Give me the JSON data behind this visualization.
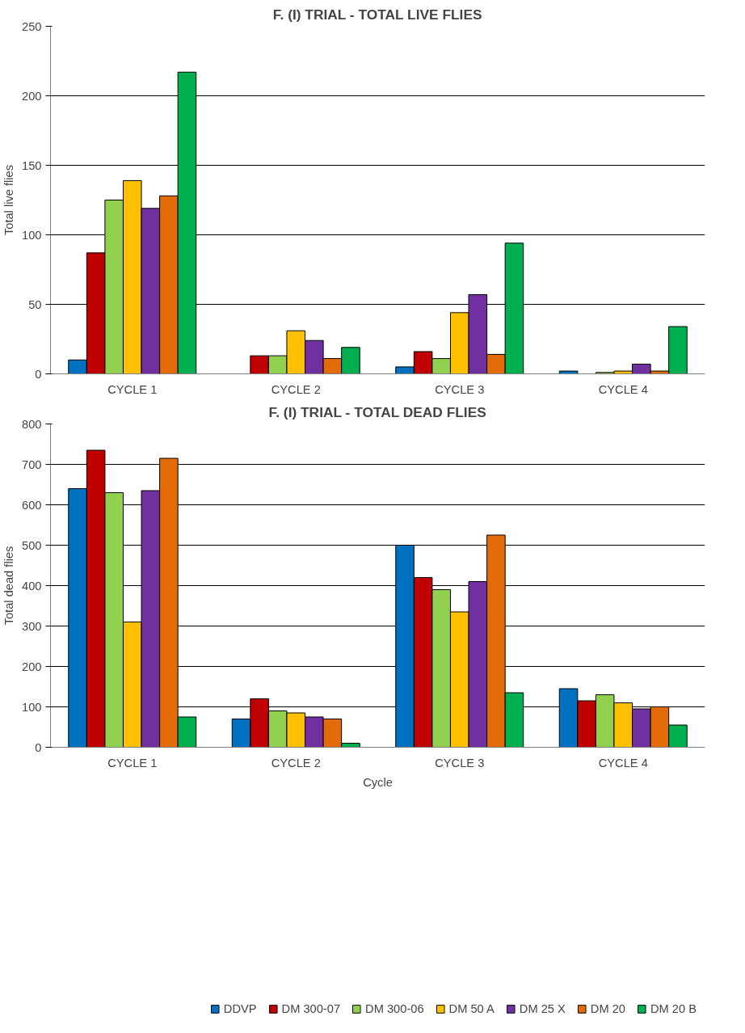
{
  "chart_data": [
    {
      "type": "bar",
      "title": "F. (I) TRIAL - TOTAL LIVE FLIES",
      "ylabel": "Total live flies",
      "categories": [
        "CYCLE 1",
        "CYCLE 2",
        "CYCLE 3",
        "CYCLE 4"
      ],
      "ylim": [
        0,
        250
      ],
      "yticks": [
        0,
        50,
        100,
        150,
        200,
        250
      ],
      "grid": "y",
      "series": [
        {
          "color": "#0070c0",
          "values": [
            10,
            null,
            5,
            2
          ]
        },
        {
          "color": "#c00000",
          "values": [
            87,
            13,
            16,
            null
          ]
        },
        {
          "color": "#92d050",
          "values": [
            125,
            13,
            11,
            1
          ]
        },
        {
          "color": "#ffc000",
          "values": [
            139,
            31,
            44,
            2
          ]
        },
        {
          "color": "#7030a0",
          "values": [
            119,
            24,
            57,
            7
          ]
        },
        {
          "color": "#e36c09",
          "values": [
            128,
            11,
            14,
            2
          ]
        },
        {
          "color": "#00b050",
          "values": [
            217,
            19,
            94,
            34
          ]
        }
      ]
    },
    {
      "type": "bar",
      "title": "F. (I) TRIAL - TOTAL DEAD FLIES",
      "xlabel": "Cycle",
      "ylabel": "Total dead flies",
      "categories": [
        "CYCLE 1",
        "CYCLE 2",
        "CYCLE 3",
        "CYCLE 4"
      ],
      "ylim": [
        0,
        800
      ],
      "yticks": [
        0,
        100,
        200,
        300,
        400,
        500,
        600,
        700,
        800
      ],
      "grid": "y",
      "legend": "bottom",
      "series": [
        {
          "name": "DDVP",
          "color": "#0070c0",
          "values": [
            640,
            70,
            500,
            145
          ]
        },
        {
          "name": "DM 300-07",
          "color": "#c00000",
          "values": [
            735,
            120,
            420,
            115
          ]
        },
        {
          "name": "DM 300-06",
          "color": "#92d050",
          "values": [
            630,
            90,
            390,
            130
          ]
        },
        {
          "name": "DM 50 A",
          "color": "#ffc000",
          "values": [
            310,
            85,
            335,
            110
          ]
        },
        {
          "name": "DM 25 X",
          "color": "#7030a0",
          "values": [
            635,
            75,
            410,
            95
          ]
        },
        {
          "name": "DM 20",
          "color": "#e36c09",
          "values": [
            715,
            70,
            525,
            100
          ]
        },
        {
          "name": "DM 20 B",
          "color": "#00b050",
          "values": [
            75,
            10,
            135,
            55
          ]
        }
      ]
    }
  ]
}
